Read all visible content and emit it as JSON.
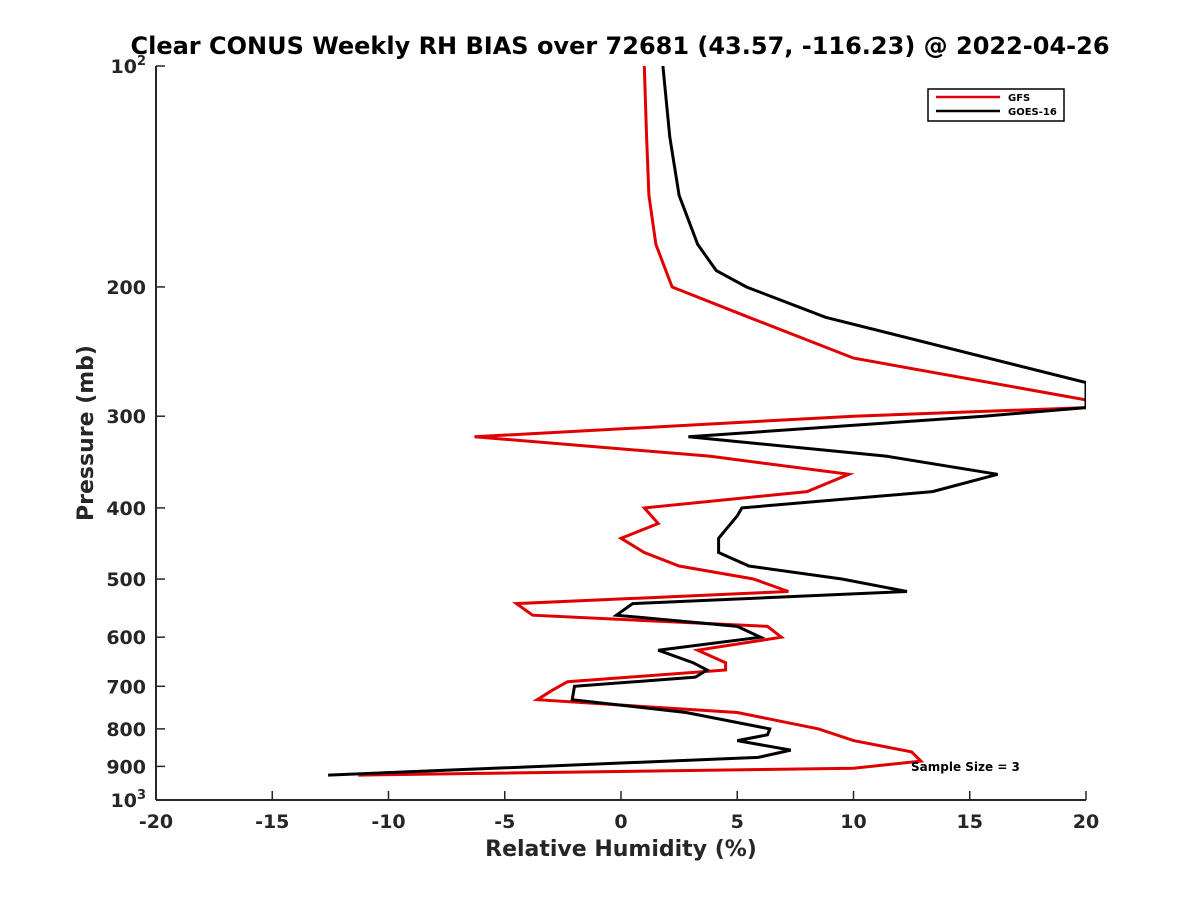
{
  "chart_data": {
    "type": "line",
    "title": "Clear CONUS Weekly RH BIAS over 72681 (43.57, -116.23) @ 2022-04-26",
    "xlabel": "Relative Humidity (%)",
    "ylabel": "Pressure (mb)",
    "xlim": [
      -20,
      20
    ],
    "ylim": [
      100,
      1000
    ],
    "y_scale": "log",
    "y_reversed": true,
    "grid": false,
    "legend_position": "top-right",
    "x_ticks": [
      "-20",
      "-15",
      "-10",
      "-5",
      "0",
      "5",
      "10",
      "15",
      "20"
    ],
    "y_ticks": [
      {
        "value": 100,
        "base": "10",
        "exp": "2"
      },
      {
        "value": 200,
        "label": "200"
      },
      {
        "value": 300,
        "label": "300"
      },
      {
        "value": 400,
        "label": "400"
      },
      {
        "value": 500,
        "label": "500"
      },
      {
        "value": 600,
        "label": "600"
      },
      {
        "value": 700,
        "label": "700"
      },
      {
        "value": 800,
        "label": "800"
      },
      {
        "value": 900,
        "label": "900"
      },
      {
        "value": 1000,
        "base": "10",
        "exp": "3"
      }
    ],
    "annotation": "Sample Size = 3",
    "series": [
      {
        "name": "GFS",
        "color": "#e00000",
        "points": [
          [
            1.0,
            100
          ],
          [
            1.1,
            125
          ],
          [
            1.2,
            150
          ],
          [
            1.5,
            175
          ],
          [
            2.2,
            200
          ],
          [
            5.5,
            220
          ],
          [
            10.0,
            250
          ],
          [
            20.0,
            285
          ],
          [
            20.0,
            292
          ],
          [
            10.0,
            300
          ],
          [
            -6.3,
            320
          ],
          [
            3.8,
            340
          ],
          [
            9.8,
            360
          ],
          [
            8.0,
            380
          ],
          [
            1.0,
            400
          ],
          [
            1.6,
            420
          ],
          [
            0.0,
            440
          ],
          [
            1.0,
            460
          ],
          [
            2.5,
            480
          ],
          [
            5.7,
            500
          ],
          [
            7.2,
            520
          ],
          [
            -4.5,
            540
          ],
          [
            -3.8,
            560
          ],
          [
            6.3,
            580
          ],
          [
            6.9,
            600
          ],
          [
            3.3,
            625
          ],
          [
            4.5,
            650
          ],
          [
            4.5,
            665
          ],
          [
            -2.3,
            690
          ],
          [
            -3.0,
            710
          ],
          [
            -3.6,
            730
          ],
          [
            5.0,
            760
          ],
          [
            8.5,
            800
          ],
          [
            10.0,
            830
          ],
          [
            12.5,
            860
          ],
          [
            12.9,
            885
          ],
          [
            10.0,
            905
          ],
          [
            -11.3,
            925
          ]
        ]
      },
      {
        "name": "GOES-16",
        "color": "#000000",
        "points": [
          [
            1.8,
            100
          ],
          [
            2.1,
            125
          ],
          [
            2.5,
            150
          ],
          [
            3.3,
            175
          ],
          [
            4.1,
            190
          ],
          [
            5.4,
            200
          ],
          [
            8.8,
            220
          ],
          [
            20.0,
            270
          ],
          [
            20.0,
            292
          ],
          [
            15.6,
            300
          ],
          [
            2.9,
            320
          ],
          [
            11.4,
            340
          ],
          [
            16.2,
            360
          ],
          [
            13.4,
            380
          ],
          [
            5.2,
            400
          ],
          [
            5.0,
            410
          ],
          [
            4.2,
            440
          ],
          [
            4.2,
            460
          ],
          [
            5.5,
            480
          ],
          [
            9.5,
            500
          ],
          [
            12.3,
            520
          ],
          [
            0.5,
            540
          ],
          [
            -0.2,
            560
          ],
          [
            5.0,
            580
          ],
          [
            6.0,
            600
          ],
          [
            1.6,
            625
          ],
          [
            3.1,
            650
          ],
          [
            3.7,
            665
          ],
          [
            3.2,
            680
          ],
          [
            -2.0,
            700
          ],
          [
            -2.1,
            730
          ],
          [
            2.8,
            760
          ],
          [
            6.4,
            800
          ],
          [
            6.3,
            815
          ],
          [
            5.0,
            830
          ],
          [
            7.3,
            855
          ],
          [
            5.9,
            875
          ],
          [
            -12.6,
            925
          ]
        ]
      }
    ]
  }
}
